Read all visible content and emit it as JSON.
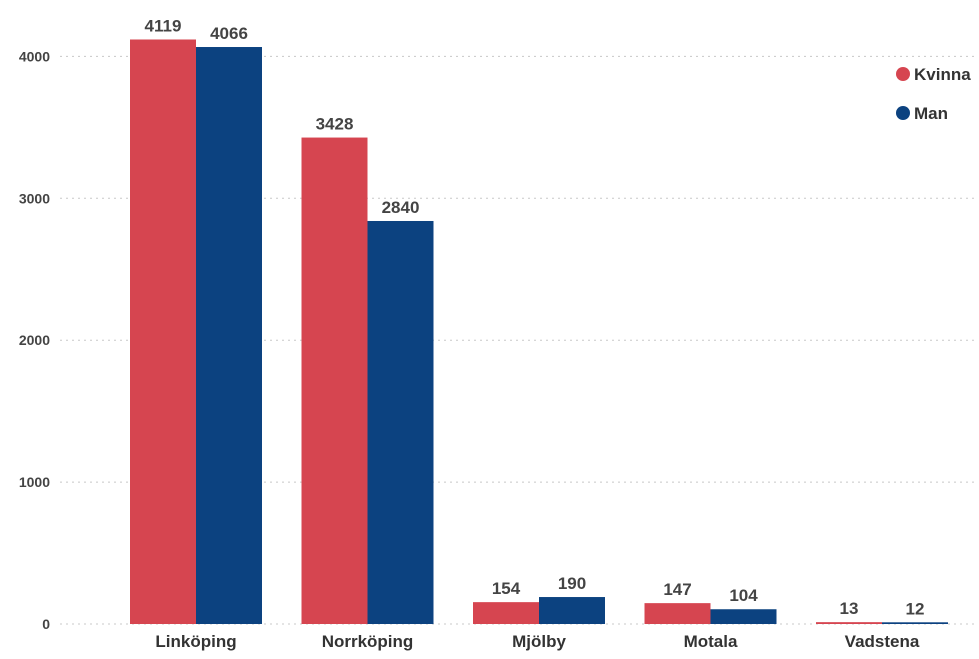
{
  "chart_data": {
    "type": "bar",
    "categories": [
      "Linköping",
      "Norrköping",
      "Mjölby",
      "Motala",
      "Vadstena"
    ],
    "series": [
      {
        "name": "Kvinna",
        "color": "#d64550",
        "values": [
          4119,
          3428,
          154,
          147,
          13
        ]
      },
      {
        "name": "Man",
        "color": "#0c4280",
        "values": [
          4066,
          2840,
          190,
          104,
          12
        ]
      }
    ],
    "yticks": [
      "0",
      "1000",
      "2000",
      "3000",
      "4000"
    ],
    "ylim": [
      0,
      4200
    ],
    "grid": true,
    "legend_position": "top-right",
    "title": "",
    "xlabel": "",
    "ylabel": ""
  }
}
